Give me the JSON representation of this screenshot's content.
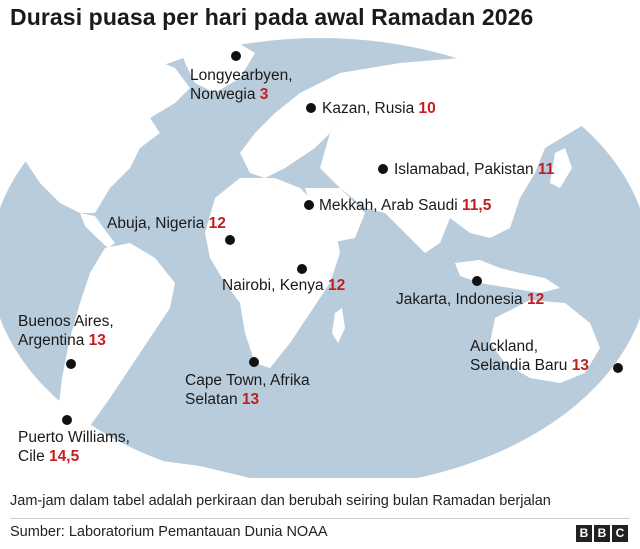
{
  "title": "Durasi puasa per hari pada awal Ramadan 2026",
  "colors": {
    "ocean": "#b8ccdc",
    "land": "#ffffff",
    "value": "#c41d1d",
    "dot": "#111111"
  },
  "locations": [
    {
      "id": "longyearbyen",
      "line1": "Longyearbyen,",
      "line2": "Norwegia",
      "value": "3"
    },
    {
      "id": "kazan",
      "line1": "Kazan, Rusia",
      "line2": "",
      "value": "10"
    },
    {
      "id": "islamabad",
      "line1": "Islamabad, Pakistan",
      "line2": "",
      "value": "11"
    },
    {
      "id": "mekkah",
      "line1": "Mekkah, Arab Saudi",
      "line2": "",
      "value": "11,5"
    },
    {
      "id": "abuja",
      "line1": "Abuja, Nigeria",
      "line2": "",
      "value": "12"
    },
    {
      "id": "nairobi",
      "line1": "Nairobi, Kenya",
      "line2": "",
      "value": "12"
    },
    {
      "id": "jakarta",
      "line1": "Jakarta, Indonesia",
      "line2": "",
      "value": "12"
    },
    {
      "id": "buenos-aires",
      "line1": "Buenos Aires,",
      "line2": "Argentina",
      "value": "13"
    },
    {
      "id": "auckland",
      "line1": "Auckland,",
      "line2": "Selandia Baru",
      "value": "13"
    },
    {
      "id": "cape-town",
      "line1": "Cape Town, Afrika",
      "line2": "Selatan",
      "value": "13"
    },
    {
      "id": "puerto-williams",
      "line1": "Puerto Williams,",
      "line2": "Cile",
      "value": "14,5"
    }
  ],
  "note": "Jam-jam dalam tabel adalah perkiraan dan berubah seiring bulan Ramadan berjalan",
  "source": "Sumber: Laboratorium Pemantauan Dunia NOAA",
  "logo": [
    "B",
    "B",
    "C"
  ]
}
